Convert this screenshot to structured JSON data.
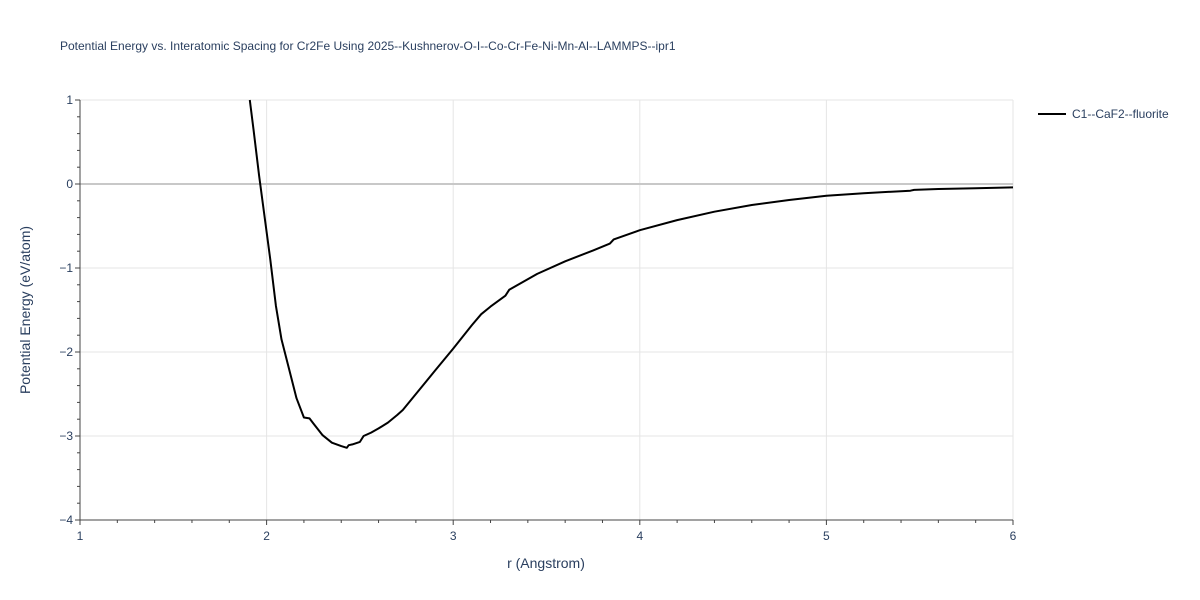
{
  "chart_data": {
    "type": "line",
    "title": "Potential Energy vs. Interatomic Spacing for Cr2Fe Using 2025--Kushnerov-O-I--Co-Cr-Fe-Ni-Mn-Al--LAMMPS--ipr1",
    "xlabel": "r (Angstrom)",
    "ylabel": "Potential Energy (eV/atom)",
    "xlim": [
      1,
      6
    ],
    "ylim": [
      -4,
      1
    ],
    "x_ticks": [
      1,
      2,
      3,
      4,
      5,
      6
    ],
    "y_ticks": [
      -4,
      -3,
      -2,
      -1,
      0,
      1
    ],
    "x_tick_labels": [
      "1",
      "2",
      "3",
      "4",
      "5",
      "6"
    ],
    "y_tick_labels": [
      "−4",
      "−3",
      "−2",
      "−1",
      "0",
      "1"
    ],
    "grid": true,
    "zero_line": true,
    "legend_position": "top-right",
    "colors": {
      "series": "#000000",
      "grid": "#e5e5e5",
      "zeroline": "#c8c8c8",
      "text": "#2a3f5f"
    },
    "series": [
      {
        "name": "C1--CaF2--fluorite",
        "x": [
          1.91,
          1.93,
          1.96,
          1.99,
          2.02,
          2.05,
          2.08,
          2.12,
          2.16,
          2.2,
          2.23,
          2.25,
          2.3,
          2.35,
          2.4,
          2.43,
          2.44,
          2.46,
          2.5,
          2.52,
          2.56,
          2.6,
          2.65,
          2.7,
          2.73,
          2.8,
          2.9,
          3.0,
          3.1,
          3.15,
          3.2,
          3.28,
          3.3,
          3.45,
          3.6,
          3.75,
          3.84,
          3.86,
          4.0,
          4.2,
          4.4,
          4.6,
          4.8,
          5.0,
          5.2,
          5.45,
          5.47,
          5.6,
          5.8,
          6.0
        ],
        "y": [
          1.0,
          0.65,
          0.1,
          -0.4,
          -0.9,
          -1.45,
          -1.85,
          -2.2,
          -2.55,
          -2.78,
          -2.79,
          -2.85,
          -2.99,
          -3.08,
          -3.12,
          -3.14,
          -3.11,
          -3.1,
          -3.07,
          -3.0,
          -2.96,
          -2.91,
          -2.84,
          -2.75,
          -2.69,
          -2.5,
          -2.23,
          -1.96,
          -1.68,
          -1.55,
          -1.46,
          -1.33,
          -1.26,
          -1.07,
          -0.92,
          -0.79,
          -0.71,
          -0.66,
          -0.55,
          -0.43,
          -0.33,
          -0.25,
          -0.19,
          -0.14,
          -0.11,
          -0.08,
          -0.07,
          -0.06,
          -0.05,
          -0.04
        ]
      }
    ]
  }
}
